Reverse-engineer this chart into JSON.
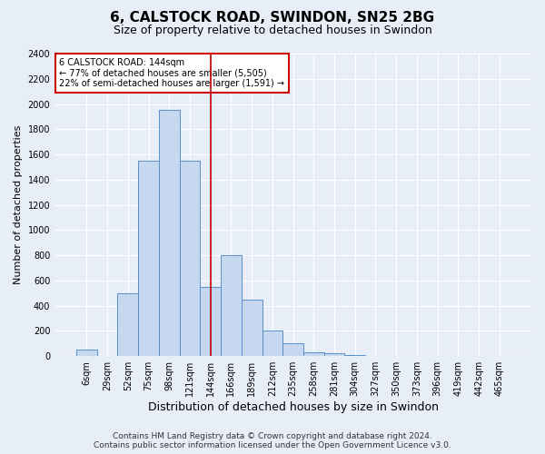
{
  "title": "6, CALSTOCK ROAD, SWINDON, SN25 2BG",
  "subtitle": "Size of property relative to detached houses in Swindon",
  "xlabel": "Distribution of detached houses by size in Swindon",
  "ylabel": "Number of detached properties",
  "categories": [
    "6sqm",
    "29sqm",
    "52sqm",
    "75sqm",
    "98sqm",
    "121sqm",
    "144sqm",
    "166sqm",
    "189sqm",
    "212sqm",
    "235sqm",
    "258sqm",
    "281sqm",
    "304sqm",
    "327sqm",
    "350sqm",
    "373sqm",
    "396sqm",
    "419sqm",
    "442sqm",
    "465sqm"
  ],
  "values": [
    50,
    0,
    500,
    1550,
    1950,
    1550,
    550,
    800,
    450,
    200,
    100,
    30,
    25,
    10,
    0,
    0,
    0,
    0,
    0,
    0,
    0
  ],
  "bar_color": "#c5d8f0",
  "bar_edge_color": "#5b8fc9",
  "target_idx": 6,
  "target_line_color": "#bb0000",
  "ylim": [
    0,
    2400
  ],
  "yticks": [
    0,
    200,
    400,
    600,
    800,
    1000,
    1200,
    1400,
    1600,
    1800,
    2000,
    2200,
    2400
  ],
  "annotation_box_color": "#cc0000",
  "annotation_text_line1": "6 CALSTOCK ROAD: 144sqm",
  "annotation_text_line2": "← 77% of detached houses are smaller (5,505)",
  "annotation_text_line3": "22% of semi-detached houses are larger (1,591) →",
  "footer_line1": "Contains HM Land Registry data © Crown copyright and database right 2024.",
  "footer_line2": "Contains public sector information licensed under the Open Government Licence v3.0.",
  "bg_color": "#e8eef8",
  "plot_bg_color": "#e8eef8",
  "grid_color": "#ffffff",
  "title_fontsize": 11,
  "subtitle_fontsize": 9,
  "ylabel_fontsize": 8,
  "xlabel_fontsize": 9,
  "tick_fontsize": 7,
  "annotation_fontsize": 7,
  "footer_fontsize": 6.5
}
